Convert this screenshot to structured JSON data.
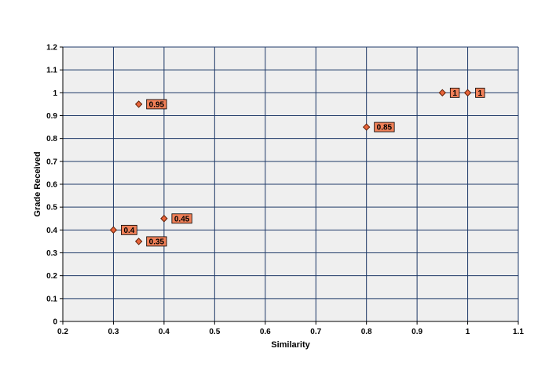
{
  "chart_data": {
    "type": "scatter",
    "xlabel": "Similarity",
    "ylabel": "Grade Received",
    "xlim": [
      0.2,
      1.1
    ],
    "ylim": [
      0,
      1.2
    ],
    "xticks": [
      "0.2",
      "0.3",
      "0.4",
      "0.5",
      "0.6",
      "0.7",
      "0.8",
      "0.9",
      "1",
      "1.1"
    ],
    "yticks": [
      "0",
      "0.1",
      "0.2",
      "0.3",
      "0.4",
      "0.5",
      "0.6",
      "0.7",
      "0.8",
      "0.9",
      "1",
      "1.1",
      "1.2"
    ],
    "grid": true,
    "legend": "none",
    "colors": {
      "plot_background": "#efefef",
      "gridline": "#1f3a68",
      "marker_fill": "#e8643a",
      "marker_stroke": "#5a1a00",
      "label_background": "#f08058",
      "label_border": "#000000"
    },
    "points": [
      {
        "x": 0.35,
        "y": 0.95,
        "label": "0.95"
      },
      {
        "x": 0.8,
        "y": 0.85,
        "label": "0.85"
      },
      {
        "x": 0.95,
        "y": 1.0,
        "label": "1"
      },
      {
        "x": 1.0,
        "y": 1.0,
        "label": "1"
      },
      {
        "x": 0.4,
        "y": 0.45,
        "label": "0.45"
      },
      {
        "x": 0.3,
        "y": 0.4,
        "label": "0.4"
      },
      {
        "x": 0.35,
        "y": 0.35,
        "label": "0.35"
      }
    ]
  }
}
